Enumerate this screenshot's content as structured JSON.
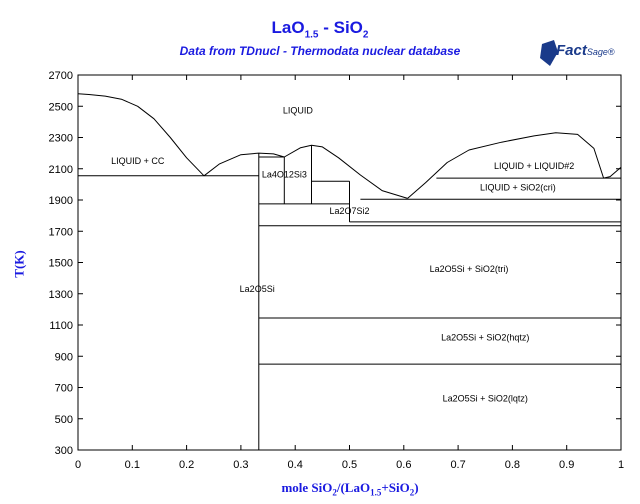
{
  "title": {
    "main": "LaO",
    "main_sub": "1.5",
    "main_rest": " - SiO",
    "main_sub2": "2",
    "subtitle": "Data from TDnucl - Thermodata nuclear database"
  },
  "logo": {
    "main": "Fact",
    "rest": "Sage",
    "mark": "®"
  },
  "chart_data": {
    "type": "line",
    "title": "LaO1.5 - SiO2",
    "subtitle": "Data from TDnucl - Thermodata nuclear database",
    "xlabel": "mole SiO2/(LaO1.5+SiO2)",
    "ylabel": "T(K)",
    "xlim": [
      0,
      1
    ],
    "ylim": [
      300,
      2700
    ],
    "xticks": [
      0,
      0.1,
      0.2,
      0.3,
      0.4,
      0.5,
      0.6,
      0.7,
      0.8,
      0.9,
      1
    ],
    "xtick_labels": [
      "0",
      "0.1",
      "0.2",
      "0.3",
      "0.4",
      "0.5",
      "0.6",
      "0.7",
      "0.8",
      "0.9",
      "1"
    ],
    "yticks": [
      300,
      500,
      700,
      900,
      1100,
      1300,
      1500,
      1700,
      1900,
      2100,
      2300,
      2500,
      2700
    ],
    "ytick_labels": [
      "300",
      "500",
      "700",
      "900",
      "1100",
      "1300",
      "1500",
      "1700",
      "1900",
      "2100",
      "2300",
      "2500",
      "2700"
    ],
    "grid": false,
    "series": [
      {
        "x": [
          0,
          0.02,
          0.05,
          0.08,
          0.11,
          0.14,
          0.17,
          0.2,
          0.232
        ],
        "y": [
          2580,
          2575,
          2565,
          2545,
          2500,
          2420,
          2300,
          2170,
          2055
        ]
      },
      {
        "x": [
          0.232,
          0.26,
          0.3,
          0.333,
          0.36,
          0.38
        ],
        "y": [
          2055,
          2130,
          2190,
          2200,
          2195,
          2175
        ]
      },
      {
        "x": [
          0.38,
          0.41,
          0.43,
          0.45,
          0.48,
          0.52,
          0.56,
          0.607
        ],
        "y": [
          2175,
          2235,
          2250,
          2240,
          2170,
          2060,
          1960,
          1910
        ]
      },
      {
        "x": [
          0.607,
          0.64,
          0.68,
          0.72,
          0.78,
          0.84,
          0.88,
          0.92,
          0.95,
          0.968
        ],
        "y": [
          1910,
          2010,
          2140,
          2220,
          2270,
          2310,
          2330,
          2320,
          2230,
          2040
        ]
      },
      {
        "x": [
          0.968,
          0.98,
          1
        ],
        "y": [
          2040,
          2050,
          2110
        ]
      },
      {
        "x": [
          0,
          0.333
        ],
        "y": [
          2055,
          2055
        ]
      },
      {
        "x": [
          0.333,
          0.333
        ],
        "y": [
          300,
          2200
        ]
      },
      {
        "x": [
          0.333,
          0.38
        ],
        "y": [
          2175,
          2175
        ]
      },
      {
        "x": [
          0.38,
          0.38
        ],
        "y": [
          1875,
          2175
        ]
      },
      {
        "x": [
          0.333,
          0.5
        ],
        "y": [
          1875,
          1875
        ]
      },
      {
        "x": [
          0.43,
          0.43
        ],
        "y": [
          1875,
          2250
        ]
      },
      {
        "x": [
          0.43,
          0.5
        ],
        "y": [
          2020,
          2020
        ]
      },
      {
        "x": [
          0.5,
          0.5
        ],
        "y": [
          1760,
          2020
        ]
      },
      {
        "x": [
          0.5,
          1
        ],
        "y": [
          1760,
          1760
        ]
      },
      {
        "x": [
          0.333,
          1
        ],
        "y": [
          1735,
          1735
        ]
      },
      {
        "x": [
          0.52,
          1
        ],
        "y": [
          1905,
          1905
        ]
      },
      {
        "x": [
          0.66,
          1
        ],
        "y": [
          2040,
          2040
        ]
      },
      {
        "x": [
          0.333,
          1
        ],
        "y": [
          1145,
          1145
        ]
      },
      {
        "x": [
          0.333,
          1
        ],
        "y": [
          850,
          850
        ]
      }
    ],
    "annotations": [
      {
        "text": "LIQUID",
        "x": 0.405,
        "y": 2455
      },
      {
        "text": "LIQUID + CC",
        "x": 0.11,
        "y": 2130
      },
      {
        "text": "La4O12Si3",
        "x": 0.38,
        "y": 2045
      },
      {
        "text": "LIQUID + LIQUID#2",
        "x": 0.84,
        "y": 2100
      },
      {
        "text": "LIQUID + SiO2(cri)",
        "x": 0.81,
        "y": 1960
      },
      {
        "text": "La2O7Si2",
        "x": 0.5,
        "y": 1810
      },
      {
        "text": "La2O5Si + SiO2(tri)",
        "x": 0.72,
        "y": 1440
      },
      {
        "text": "La2O5Si",
        "x": 0.33,
        "y": 1310
      },
      {
        "text": "La2O5Si + SiO2(hqtz)",
        "x": 0.75,
        "y": 1000
      },
      {
        "text": "La2O5Si + SiO2(lqtz)",
        "x": 0.75,
        "y": 610
      }
    ]
  }
}
